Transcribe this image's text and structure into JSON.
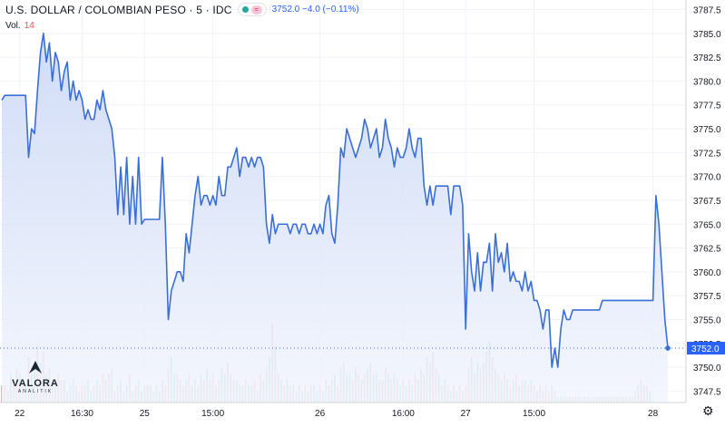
{
  "header": {
    "symbol": "U.S. DOLLAR / COLOMBIAN PESO · 5 · IDC",
    "ohlc": "3752.0  −4.0 (−0.11%)",
    "pink_icon": "≈",
    "volume_label": "Vol.",
    "volume_value": "14"
  },
  "logo": {
    "name": "VALORA",
    "sub": "ANALITIK"
  },
  "settings_icon": "gear-icon",
  "colors": {
    "line": "#3a6fd8",
    "area_top": "#c9d6f5",
    "area_bottom": "#f2f5fd",
    "vol_up": "#7fd3c3",
    "vol_down": "#f3a6a6",
    "last_price_bg": "#2962ff",
    "grid": "#f0f3fa"
  },
  "chart_data": {
    "type": "area",
    "title": "",
    "xlabel": "",
    "ylabel": "",
    "ylim": [
      3746.3,
      3788.5
    ],
    "yticks": [
      3747.5,
      3750.0,
      3752.5,
      3755.0,
      3757.5,
      3760.0,
      3762.5,
      3765.0,
      3767.5,
      3770.0,
      3772.5,
      3775.0,
      3777.5,
      3780.0,
      3782.5,
      3785.0,
      3787.5
    ],
    "ytick_labels": [
      "3747.5",
      "3750.0",
      "3752.5",
      "3755.0",
      "3757.5",
      "3760.0",
      "3762.5",
      "3765.0",
      "3767.5",
      "3770.0",
      "3772.5",
      "3775.0",
      "3777.5",
      "3780.0",
      "3782.5",
      "3785.0",
      "3787.5"
    ],
    "xticks": [
      {
        "bar": 6,
        "label": "22"
      },
      {
        "bar": 27,
        "label": "16:30"
      },
      {
        "bar": 48,
        "label": "25"
      },
      {
        "bar": 71,
        "label": "15:00"
      },
      {
        "bar": 107,
        "label": "26"
      },
      {
        "bar": 135,
        "label": "16:00"
      },
      {
        "bar": 156,
        "label": "27"
      },
      {
        "bar": 179,
        "label": "15:00"
      },
      {
        "bar": 219,
        "label": "28"
      }
    ],
    "last_price": 3752.0,
    "last_price_label": "3752.0",
    "series": [
      {
        "values": [
          3778,
          3778.5,
          3778.5,
          3778.5,
          3778.5,
          3778.5,
          3778.5,
          3778.5,
          3778.5,
          3772,
          3775,
          3774.5,
          3779,
          3783,
          3785,
          3782,
          3784,
          3780,
          3783,
          3782,
          3779,
          3781,
          3782,
          3778,
          3780,
          3778,
          3779,
          3778,
          3776,
          3777,
          3776,
          3776,
          3778,
          3777,
          3779,
          3777,
          3776,
          3775,
          3772,
          3766,
          3771,
          3766,
          3772,
          3765,
          3770,
          3765,
          3772,
          3765,
          3765.5,
          3765.5,
          3765.5,
          3765.5,
          3765.5,
          3765.5,
          3772,
          3765,
          3755,
          3758,
          3759,
          3760,
          3760,
          3759,
          3764,
          3762,
          3765,
          3768,
          3770,
          3767,
          3768,
          3768,
          3767,
          3768,
          3767,
          3770,
          3768,
          3768,
          3771,
          3771,
          3772,
          3773,
          3770,
          3772,
          3772,
          3771,
          3772,
          3771,
          3772,
          3772,
          3771,
          3765,
          3763,
          3766,
          3764,
          3765,
          3765,
          3765,
          3765,
          3764,
          3765,
          3765,
          3764,
          3765,
          3765,
          3764,
          3764,
          3765,
          3764,
          3765,
          3764,
          3767,
          3768,
          3764,
          3763,
          3767,
          3773,
          3772,
          3775,
          3774,
          3773,
          3772,
          3773,
          3774,
          3776,
          3775,
          3773,
          3774,
          3775,
          3772,
          3773,
          3776,
          3774,
          3773,
          3771,
          3773,
          3772,
          3772,
          3773,
          3775,
          3773,
          3772,
          3774,
          3774,
          3769,
          3767,
          3769,
          3767,
          3769,
          3769,
          3769,
          3769,
          3769,
          3766,
          3769,
          3769,
          3769,
          3767,
          3754,
          3764,
          3760,
          3758,
          3762,
          3758,
          3761,
          3761,
          3763,
          3758,
          3764,
          3761,
          3762,
          3760,
          3763,
          3759,
          3760,
          3759,
          3759,
          3758,
          3760,
          3758,
          3759,
          3757,
          3757,
          3756,
          3754,
          3756,
          3756,
          3750,
          3752,
          3750,
          3754,
          3756,
          3755,
          3755,
          3756,
          3756,
          3756,
          3756,
          3756,
          3756,
          3756,
          3756,
          3756,
          3756,
          3757,
          3757,
          3757,
          3757,
          3757,
          3757,
          3757,
          3757,
          3757,
          3757,
          3757,
          3757,
          3757,
          3757,
          3757,
          3757,
          3757,
          3757,
          3768,
          3765,
          3760,
          3755,
          3752
        ]
      }
    ],
    "volume": {
      "ylim": [
        0,
        16
      ],
      "values": [
        3,
        3,
        2,
        5,
        4,
        6,
        5,
        3,
        3,
        8,
        5,
        6,
        10,
        7,
        9,
        5,
        6,
        4,
        3,
        5,
        4,
        4,
        2,
        3,
        4,
        3,
        2,
        3,
        3,
        4,
        2,
        3,
        4,
        3,
        5,
        4,
        5,
        6,
        2,
        3,
        4,
        2,
        3,
        5,
        2,
        3,
        4,
        2,
        3,
        3,
        3,
        2,
        3,
        2,
        4,
        3,
        6,
        8,
        5,
        5,
        4,
        3,
        4,
        5,
        3,
        4,
        3,
        5,
        4,
        6,
        4,
        5,
        3,
        4,
        6,
        5,
        7,
        5,
        4,
        4,
        3,
        3,
        4,
        3,
        3,
        4,
        2,
        5,
        4,
        6,
        8,
        14,
        10,
        5,
        4,
        3,
        4,
        3,
        3,
        2,
        3,
        2,
        3,
        2,
        3,
        3,
        2,
        3,
        2,
        4,
        3,
        4,
        5,
        3,
        6,
        7,
        5,
        5,
        4,
        6,
        5,
        4,
        5,
        6,
        7,
        5,
        5,
        4,
        4,
        6,
        5,
        4,
        5,
        4,
        3,
        4,
        3,
        4,
        3,
        5,
        4,
        6,
        5,
        8,
        7,
        9,
        6,
        5,
        3,
        4,
        3,
        2,
        3,
        2,
        3,
        2,
        3,
        6,
        8,
        5,
        7,
        6,
        7,
        9,
        11,
        8,
        6,
        5,
        4,
        5,
        4,
        3,
        4,
        5,
        3,
        4,
        4,
        3,
        4,
        3,
        2,
        3,
        2,
        3,
        2,
        3,
        2,
        1,
        1,
        1,
        1,
        1,
        1,
        1,
        1,
        1,
        1,
        1,
        1,
        1,
        1,
        1,
        1,
        1,
        1,
        1,
        1,
        1,
        1,
        1,
        1,
        1,
        1,
        2,
        3,
        4,
        3,
        3,
        2
      ],
      "down": [
        1,
        0,
        1,
        0,
        1,
        1,
        0,
        1,
        0,
        1,
        0,
        0,
        1,
        0,
        1,
        1,
        0,
        1,
        0,
        1,
        1,
        0,
        1,
        0,
        0,
        1,
        0,
        1,
        1,
        0,
        0,
        1,
        0,
        1,
        1,
        0,
        1,
        0,
        1,
        1,
        0,
        1,
        0,
        1,
        0,
        1,
        0,
        0,
        1,
        0,
        1,
        0,
        0,
        1,
        0,
        1,
        1,
        0,
        0,
        1,
        0,
        1,
        0,
        1,
        0,
        0,
        1,
        0,
        1,
        0,
        1,
        1,
        0,
        1,
        0,
        0,
        1,
        0,
        1,
        0,
        1,
        0,
        1,
        0,
        0,
        1,
        0,
        1,
        0,
        1,
        0,
        1,
        0,
        1,
        0,
        1,
        0,
        1,
        0,
        0,
        1,
        0,
        1,
        0,
        1,
        0,
        0,
        1,
        0,
        1,
        0,
        1,
        0,
        1,
        0,
        1,
        0,
        0,
        1,
        0,
        1,
        0,
        1,
        0,
        1,
        0,
        0,
        1,
        0,
        1,
        0,
        1,
        0,
        1,
        0,
        1,
        0,
        1,
        0,
        1,
        0,
        1,
        0,
        1,
        0,
        1,
        1,
        0,
        1,
        0,
        1,
        0,
        1,
        0,
        1,
        0,
        1,
        1,
        0,
        1,
        0,
        1,
        0,
        1,
        0,
        1,
        0,
        1,
        0,
        1,
        0,
        1,
        0,
        1,
        0,
        1,
        0,
        1,
        0,
        1,
        0,
        1,
        0,
        1,
        1,
        0,
        1,
        0,
        0,
        1,
        0,
        1,
        0,
        1,
        0,
        1,
        0,
        1,
        0,
        1,
        0,
        1,
        0,
        1,
        0,
        1,
        0,
        1,
        0,
        1,
        0,
        1,
        0,
        1,
        0,
        1,
        0,
        1,
        0,
        1,
        0,
        1,
        0
      ]
    }
  }
}
